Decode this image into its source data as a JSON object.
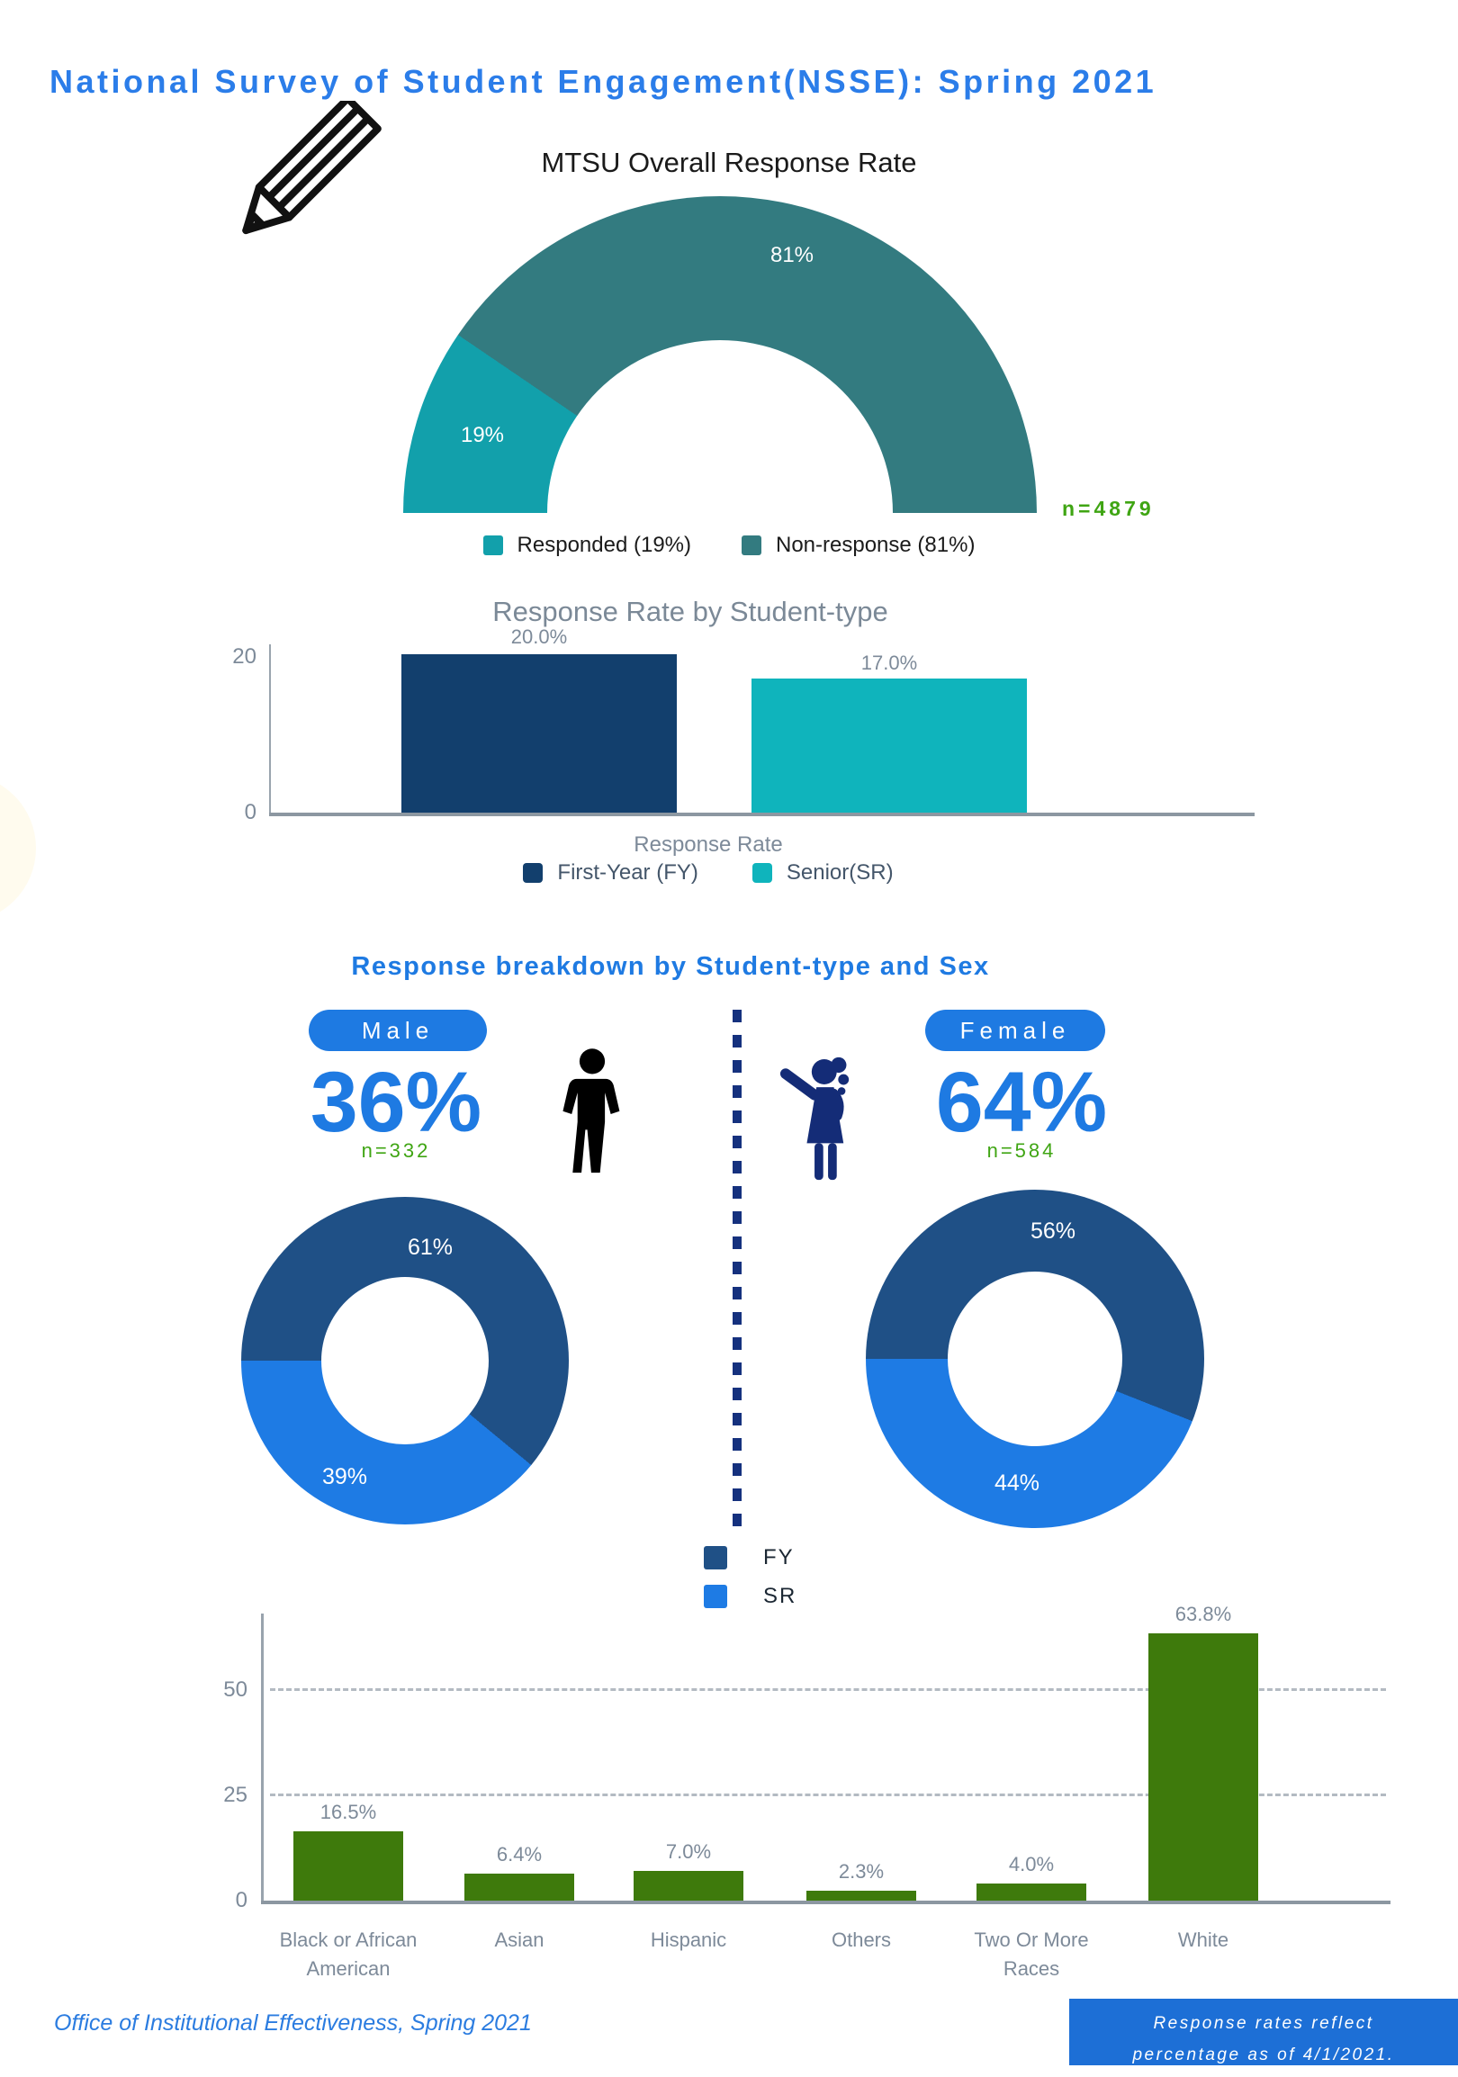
{
  "page": {
    "title": "National Survey of Student Engagement(NSSE): Spring 2021",
    "footer_left": "Office of Institutional Effectiveness, Spring 2021",
    "footer_note_line1": "Response rates reflect",
    "footer_note_line2": "percentage as of 4/1/2021."
  },
  "colors": {
    "header_blue": "#2B7DE9",
    "bright_blue": "#1E7AE2",
    "green_text": "#3FA513",
    "footer_box_blue": "#1D6FD6",
    "divider_navy": "#15317E"
  },
  "chart_data": [
    {
      "type": "pie",
      "variant": "half-donut-gauge",
      "title": "MTSU Overall Response Rate",
      "labels": [
        "Responded",
        "Non-response"
      ],
      "values": [
        19,
        81
      ],
      "slice_labels": [
        "19%",
        "81%"
      ],
      "legend": [
        "Responded (19%)",
        "Non-response (81%)"
      ],
      "legend_position": "bottom",
      "colors": [
        "#12A0AB",
        "#337B80"
      ],
      "n_label": "n=4879"
    },
    {
      "type": "bar",
      "title": "Response Rate by Student-type",
      "categories": [
        "First-Year (FY)",
        "Senior(SR)"
      ],
      "values": [
        20.0,
        17.0
      ],
      "value_labels": [
        "20.0%",
        "17.0%"
      ],
      "xlabel": "Response Rate",
      "ylabel": "",
      "ylim": [
        0,
        20
      ],
      "yticks": [
        "0",
        "20"
      ],
      "grid": false,
      "colors": [
        "#123F6D",
        "#0FB4BC"
      ],
      "legend": [
        "First-Year (FY)",
        "Senior(SR)"
      ],
      "legend_position": "bottom"
    },
    {
      "type": "pie",
      "variant": "donut-pair",
      "title": "Response breakdown by Student-type and Sex",
      "legend": [
        "FY",
        "SR"
      ],
      "legend_position": "bottom",
      "colors": [
        "#1F5086",
        "#1E7BE4"
      ],
      "series": [
        {
          "name": "Male",
          "share": "36%",
          "n_label": "n=332",
          "values": [
            61,
            39
          ],
          "slice_labels": [
            "61%",
            "39%"
          ]
        },
        {
          "name": "Female",
          "share": "64%",
          "n_label": "n=584",
          "values": [
            56,
            44
          ],
          "slice_labels": [
            "56%",
            "44%"
          ]
        }
      ]
    },
    {
      "type": "bar",
      "title": "",
      "categories": [
        "Black or African American",
        "Asian",
        "Hispanic",
        "Others",
        "Two Or More Races",
        "White"
      ],
      "values": [
        16.5,
        6.4,
        7.0,
        2.3,
        4.0,
        63.8
      ],
      "value_labels": [
        "16.5%",
        "6.4%",
        "7.0%",
        "2.3%",
        "4.0%",
        "63.8%"
      ],
      "ylim": [
        0,
        68
      ],
      "yticks": [
        "0",
        "25",
        "50"
      ],
      "grid": "dashed horizontal at 25 and 50",
      "colors": [
        "#3E7A0C",
        "#3E7A0C",
        "#3E7A0C",
        "#3E7A0C",
        "#3E7A0C",
        "#3E7A0C"
      ]
    }
  ]
}
